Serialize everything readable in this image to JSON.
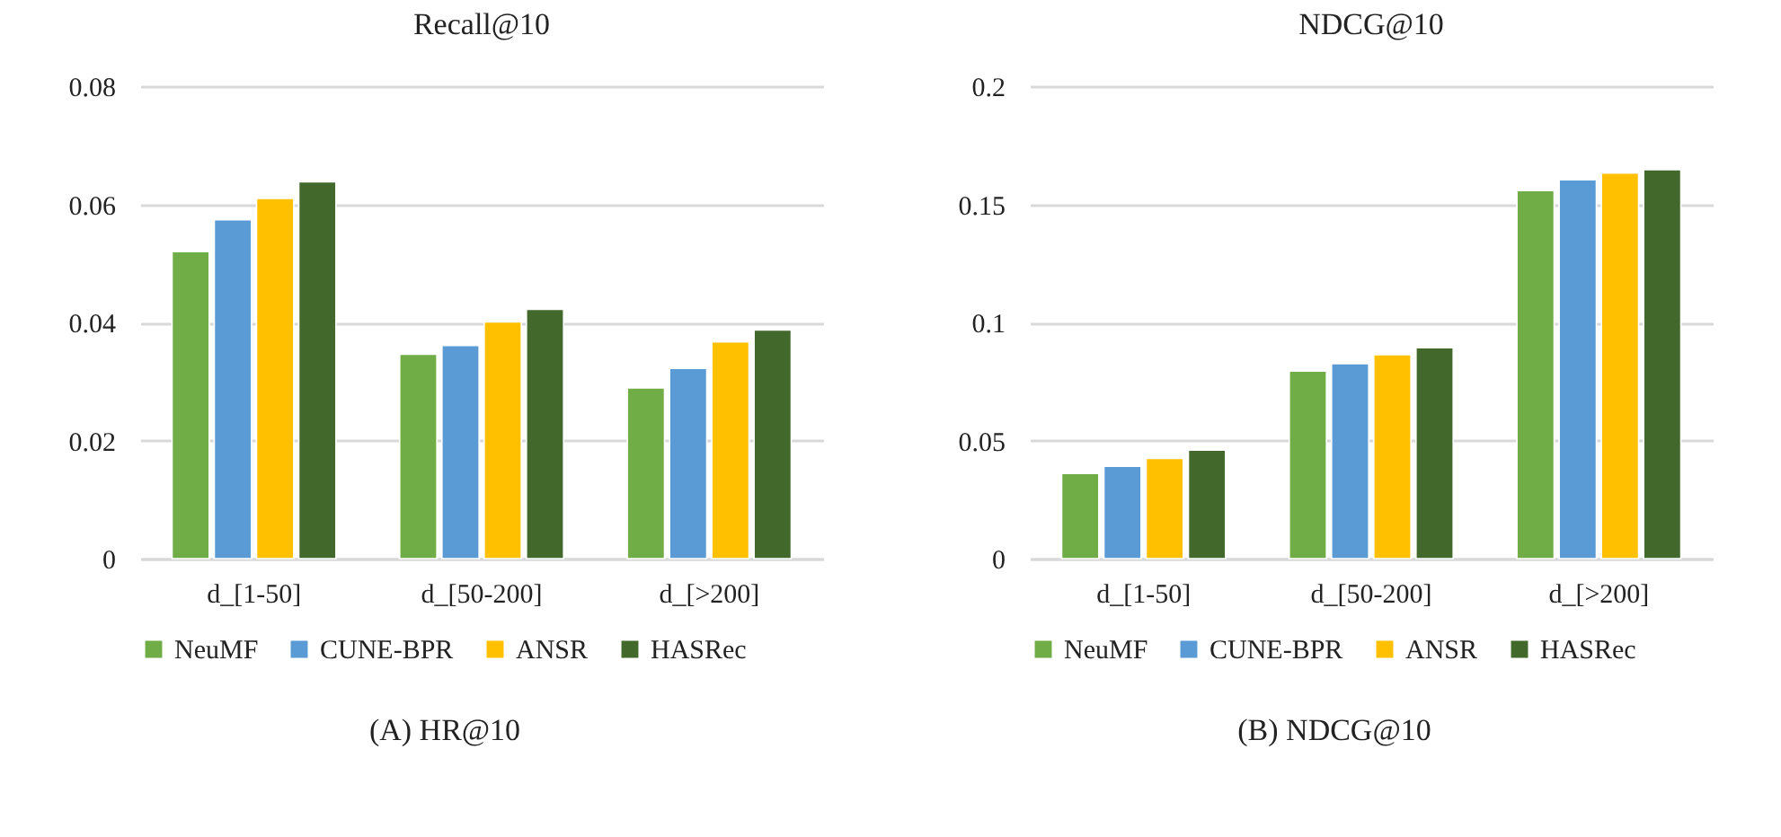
{
  "chart_data": [
    {
      "type": "bar",
      "title": "Recall@10",
      "categories": [
        "d_[1-50]",
        "d_[50-200]",
        "d_[>200]"
      ],
      "series": [
        {
          "name": "NeuMF",
          "color": "#70ad47",
          "values": [
            0.052,
            0.0346,
            0.0289
          ]
        },
        {
          "name": "CUNE-BPR",
          "color": "#5b9bd5",
          "values": [
            0.0574,
            0.0361,
            0.0322
          ]
        },
        {
          "name": "ANSR",
          "color": "#ffc000",
          "values": [
            0.061,
            0.0401,
            0.0367
          ]
        },
        {
          "name": "HASRec",
          "color": "#43682b",
          "values": [
            0.0638,
            0.0422,
            0.0387
          ]
        }
      ],
      "ylim": [
        0,
        0.08
      ],
      "yticks": [
        0,
        0.02,
        0.04,
        0.06,
        0.08
      ],
      "grid": "y",
      "legend": "bottom",
      "annotations": [
        "(A) HR@10"
      ]
    },
    {
      "type": "bar",
      "title": "NDCG@10",
      "categories": [
        "d_[1-50]",
        "d_[50-200]",
        "d_[>200]"
      ],
      "series": [
        {
          "name": "NeuMF",
          "color": "#70ad47",
          "values": [
            0.036,
            0.0794,
            0.1558
          ]
        },
        {
          "name": "CUNE-BPR",
          "color": "#5b9bd5",
          "values": [
            0.0391,
            0.0825,
            0.1604
          ]
        },
        {
          "name": "ANSR",
          "color": "#ffc000",
          "values": [
            0.0424,
            0.0863,
            0.1632
          ]
        },
        {
          "name": "HASRec",
          "color": "#43682b",
          "values": [
            0.0459,
            0.0893,
            0.1647
          ]
        }
      ],
      "ylim": [
        0,
        0.2
      ],
      "yticks": [
        0,
        0.05,
        0.1,
        0.15,
        0.2
      ],
      "grid": "y",
      "legend": "bottom",
      "annotations": [
        "(B) NDCG@10"
      ]
    }
  ]
}
